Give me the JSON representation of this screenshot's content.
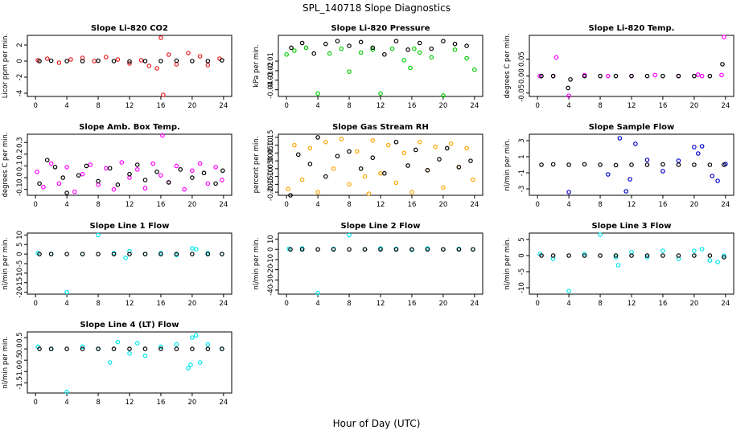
{
  "title": "SPL_140718  Slope Diagnostics",
  "xlabel": "Hour of Day (UTC)",
  "chart_data": [
    {
      "type": "scatter",
      "title": "Slope Li-820 CO2",
      "ylabel": "Licor ppm per min.",
      "xlim": [
        0,
        24
      ],
      "xticks": [
        "0",
        "4",
        "8",
        "12",
        "16",
        "20",
        "24"
      ],
      "ylim": [
        -4.4,
        3.2
      ],
      "yticks": [
        "-4",
        "-2",
        "0",
        "2"
      ],
      "series": [
        {
          "color": "#e41a1c",
          "x": [
            0.3,
            1.5,
            3.0,
            4.5,
            6.0,
            7.5,
            9.0,
            10.5,
            12.0,
            13.5,
            14.5,
            15.5,
            16.0,
            16.3,
            17.0,
            18.0,
            19.5,
            21.0,
            22.0,
            23.5
          ],
          "y": [
            0.1,
            0.3,
            -0.2,
            0.2,
            0.4,
            0.0,
            0.5,
            0.2,
            -0.3,
            0.1,
            -0.6,
            -0.9,
            2.9,
            -4.2,
            0.8,
            -0.4,
            1.0,
            0.6,
            -0.5,
            0.3
          ]
        },
        {
          "color": "#000000",
          "x": [
            0.5,
            2.0,
            4.0,
            6.0,
            8.0,
            10.0,
            12.0,
            14.0,
            16.0,
            18.0,
            20.0,
            22.0,
            23.8
          ],
          "y": [
            0.0,
            0.05,
            0.0,
            0.0,
            0.05,
            0.0,
            -0.05,
            0.0,
            0.0,
            0.05,
            0.0,
            0.0,
            0.1
          ]
        }
      ]
    },
    {
      "type": "scatter",
      "title": "Slope Li-820 Pressure",
      "ylabel": "kPa per min.",
      "xlim": [
        0,
        24
      ],
      "xticks": [
        "0",
        "4",
        "8",
        "12",
        "16",
        "20",
        "24"
      ],
      "ylim": [
        -0.047,
        0.017
      ],
      "yticks": [
        "-0.04",
        "-0.03",
        "-0.02",
        "-0.01"
      ],
      "series": [
        {
          "color": "#00cc00",
          "x": [
            0.0,
            1.0,
            2.5,
            4.0,
            5.5,
            7.0,
            8.0,
            9.5,
            11.0,
            12.0,
            13.5,
            15.0,
            15.8,
            16.3,
            17.0,
            18.5,
            20.0,
            21.5,
            23.0,
            24.0
          ],
          "y": [
            -0.003,
            0.001,
            0.004,
            -0.044,
            -0.002,
            0.003,
            -0.021,
            -0.001,
            0.002,
            -0.044,
            0.003,
            -0.009,
            -0.017,
            0.003,
            -0.001,
            -0.006,
            -0.046,
            0.002,
            -0.007,
            -0.019
          ]
        },
        {
          "color": "#000000",
          "x": [
            0.6,
            2.0,
            3.5,
            5.0,
            6.5,
            8.0,
            9.5,
            11.0,
            12.5,
            14.0,
            15.5,
            17.0,
            18.5,
            20.0,
            21.5,
            23.0
          ],
          "y": [
            0.004,
            0.009,
            -0.002,
            0.008,
            0.011,
            0.006,
            0.01,
            0.004,
            -0.003,
            0.011,
            0.002,
            0.009,
            0.003,
            0.011,
            0.008,
            0.006
          ]
        }
      ]
    },
    {
      "type": "scatter",
      "title": "Slope Li-820 Temp.",
      "ylabel": "degrees C per min.",
      "xlim": [
        0,
        24
      ],
      "xticks": [
        "0",
        "4",
        "8",
        "12",
        "16",
        "20",
        "24"
      ],
      "ylim": [
        -0.06,
        0.12
      ],
      "yticks": [
        "-0.05",
        "0.00",
        "0.05"
      ],
      "series": [
        {
          "color": "#ff00ff",
          "x": [
            0.3,
            2.0,
            2.4,
            4.0,
            6.0,
            9.0,
            12.0,
            15.0,
            18.0,
            20.5,
            21.0,
            23.5,
            23.8
          ],
          "y": [
            0.0,
            0.0,
            0.055,
            -0.058,
            0.003,
            0.0,
            0.0,
            0.003,
            0.0,
            0.004,
            0.0,
            0.003,
            0.115
          ]
        },
        {
          "color": "#000000",
          "x": [
            0.5,
            2.0,
            3.9,
            4.2,
            6.0,
            8.0,
            10.0,
            12.0,
            14.0,
            16.0,
            18.0,
            20.0,
            22.0,
            23.6
          ],
          "y": [
            0.0,
            0.0,
            -0.035,
            -0.01,
            0.0,
            0.0,
            0.0,
            0.0,
            0.0,
            0.0,
            0.0,
            0.0,
            0.0,
            0.035
          ]
        }
      ]
    },
    {
      "type": "scatter",
      "title": "Slope Amb. Box Temp.",
      "ylabel": "degrees C per min.",
      "xlim": [
        0,
        24
      ],
      "xticks": [
        "0",
        "4",
        "8",
        "12",
        "16",
        "20",
        "24"
      ],
      "ylim": [
        -0.15,
        0.37
      ],
      "yticks": [
        "-0.1",
        "0.0",
        "0.1",
        "0.2",
        "0.3"
      ],
      "series": [
        {
          "color": "#ff00ff",
          "x": [
            0.2,
            1.0,
            2.0,
            3.0,
            4.0,
            5.0,
            6.0,
            7.0,
            8.0,
            9.0,
            10.0,
            11.0,
            12.0,
            13.0,
            14.0,
            15.0,
            16.0,
            16.2,
            17.0,
            18.0,
            19.0,
            20.0,
            21.0,
            22.0,
            23.0,
            23.8
          ],
          "y": [
            0.05,
            -0.08,
            0.12,
            -0.05,
            0.09,
            -0.12,
            0.03,
            0.11,
            -0.06,
            0.08,
            -0.1,
            0.13,
            0.0,
            0.07,
            -0.09,
            0.12,
            0.02,
            0.36,
            -0.04,
            0.1,
            -0.1,
            0.06,
            0.12,
            -0.05,
            0.09,
            -0.02
          ]
        },
        {
          "color": "#000000",
          "x": [
            0.5,
            1.5,
            2.5,
            3.5,
            4.0,
            5.5,
            6.5,
            8.0,
            9.5,
            10.5,
            12.0,
            13.0,
            14.0,
            15.5,
            17.0,
            18.5,
            20.0,
            21.5,
            23.0,
            23.9
          ],
          "y": [
            -0.05,
            0.15,
            0.09,
            0.0,
            -0.13,
            0.02,
            0.1,
            -0.03,
            0.08,
            -0.06,
            0.03,
            0.11,
            -0.02,
            0.05,
            -0.04,
            0.07,
            0.0,
            0.04,
            -0.05,
            0.06
          ]
        }
      ]
    },
    {
      "type": "scatter",
      "title": "Slope Gas Stream RH",
      "ylabel": "percent per min.",
      "xlim": [
        0,
        24
      ],
      "xticks": [
        "0",
        "4",
        "8",
        "12",
        "16",
        "20",
        "24"
      ],
      "ylim": [
        -0.22,
        0.17
      ],
      "yticks": [
        "-0.20",
        "-0.15",
        "-0.10",
        "-0.05",
        "0.00",
        "0.05",
        "0.10",
        "0.15"
      ],
      "series": [
        {
          "color": "#ffa500",
          "x": [
            0.2,
            1.0,
            2.0,
            3.0,
            4.0,
            5.0,
            6.0,
            7.0,
            8.0,
            9.0,
            10.0,
            10.5,
            11.0,
            12.0,
            13.0,
            14.0,
            15.0,
            16.0,
            17.0,
            18.0,
            19.0,
            20.0,
            21.0,
            22.0,
            23.0,
            23.8
          ],
          "y": [
            -0.18,
            0.1,
            -0.12,
            0.08,
            -0.2,
            0.12,
            -0.05,
            0.14,
            -0.15,
            0.06,
            -0.1,
            -0.21,
            0.13,
            -0.08,
            0.1,
            -0.14,
            0.05,
            -0.2,
            0.12,
            -0.06,
            0.09,
            -0.17,
            0.11,
            -0.04,
            0.08,
            -0.12
          ]
        },
        {
          "color": "#000000",
          "x": [
            0.5,
            1.5,
            3.0,
            4.0,
            5.0,
            6.5,
            8.0,
            9.5,
            11.0,
            12.5,
            14.0,
            15.5,
            16.5,
            18.0,
            19.5,
            20.5,
            22.0,
            23.5
          ],
          "y": [
            -0.22,
            0.04,
            -0.02,
            0.15,
            -0.1,
            0.03,
            0.06,
            -0.05,
            0.02,
            -0.08,
            0.12,
            -0.03,
            0.07,
            -0.06,
            0.01,
            0.08,
            -0.04,
            0.0
          ]
        }
      ]
    },
    {
      "type": "scatter",
      "title": "Slope Sample Flow",
      "ylabel": "nl/min per min.",
      "xlim": [
        0,
        24
      ],
      "xticks": [
        "0",
        "4",
        "8",
        "12",
        "16",
        "20",
        "24"
      ],
      "ylim": [
        -3.8,
        3.8
      ],
      "yticks": [
        "-3",
        "-1",
        "1",
        "3"
      ],
      "series": [
        {
          "color": "#0000cc",
          "x": [
            4.0,
            9.0,
            10.5,
            11.3,
            11.8,
            12.5,
            14.0,
            16.0,
            18.0,
            20.0,
            20.5,
            21.0,
            22.3,
            23.0,
            24.0
          ],
          "y": [
            -3.4,
            -1.2,
            3.3,
            -3.3,
            -1.8,
            2.6,
            0.6,
            -0.8,
            0.5,
            2.2,
            1.4,
            2.3,
            -1.4,
            -2.0,
            0.1
          ]
        },
        {
          "color": "#000000",
          "x": [
            0.5,
            2.0,
            4.0,
            6.0,
            8.0,
            10.0,
            12.0,
            14.0,
            16.0,
            18.0,
            20.0,
            22.0,
            23.8
          ],
          "y": [
            0.0,
            0.05,
            0.0,
            0.05,
            0.0,
            -0.05,
            0.0,
            0.0,
            0.05,
            0.0,
            0.0,
            0.0,
            0.0
          ]
        }
      ]
    },
    {
      "type": "scatter",
      "title": "Slope Line 1 Flow",
      "ylabel": "nl/min per min.",
      "xlim": [
        0,
        24
      ],
      "xticks": [
        "0",
        "4",
        "8",
        "12",
        "16",
        "20",
        "24"
      ],
      "ylim": [
        -21,
        11
      ],
      "yticks": [
        "-20",
        "-15",
        "-10",
        "-5",
        "0",
        "5",
        "10"
      ],
      "series": [
        {
          "color": "#00e5ee",
          "x": [
            0.3,
            2.0,
            4.0,
            6.0,
            8.0,
            10.0,
            11.5,
            12.0,
            14.0,
            16.0,
            18.0,
            20.0,
            20.5,
            22.0,
            23.8
          ],
          "y": [
            0.5,
            0.0,
            -20.0,
            0.0,
            10.0,
            0.5,
            -2.0,
            1.5,
            0.0,
            0.5,
            -0.5,
            3.0,
            2.5,
            0.5,
            0.0
          ]
        },
        {
          "color": "#000000",
          "x": [
            0.5,
            2.0,
            4.0,
            6.0,
            8.0,
            10.0,
            12.0,
            14.0,
            16.0,
            18.0,
            20.0,
            22.0,
            23.8
          ],
          "y": [
            0.0,
            0.0,
            0.0,
            0.0,
            0.0,
            0.0,
            0.0,
            0.0,
            0.0,
            0.0,
            0.0,
            0.0,
            0.0
          ]
        }
      ]
    },
    {
      "type": "scatter",
      "title": "Slope Line 2 Flow",
      "ylabel": "nl/min per min.",
      "xlim": [
        0,
        24
      ],
      "xticks": [
        "0",
        "4",
        "8",
        "12",
        "16",
        "20",
        "24"
      ],
      "ylim": [
        -44,
        16
      ],
      "yticks": [
        "-40",
        "-30",
        "-20",
        "-10",
        "0",
        "10"
      ],
      "series": [
        {
          "color": "#00e5ee",
          "x": [
            0.3,
            2.0,
            4.0,
            6.0,
            8.0,
            10.0,
            12.0,
            14.0,
            16.0,
            18.0,
            20.0,
            22.0,
            23.8
          ],
          "y": [
            0.5,
            1.0,
            -43.0,
            0.5,
            14.0,
            0.0,
            1.0,
            0.5,
            -0.5,
            1.0,
            0.0,
            0.5,
            0.0
          ]
        },
        {
          "color": "#000000",
          "x": [
            0.5,
            2.0,
            4.0,
            6.0,
            8.0,
            10.0,
            12.0,
            14.0,
            16.0,
            18.0,
            20.0,
            22.0,
            23.8
          ],
          "y": [
            0.0,
            0.0,
            0.0,
            0.0,
            0.0,
            0.0,
            0.0,
            0.0,
            0.0,
            0.0,
            0.0,
            0.0,
            0.0
          ]
        }
      ]
    },
    {
      "type": "scatter",
      "title": "Slope Line 3 Flow",
      "ylabel": "nl/min per min.",
      "xlim": [
        0,
        24
      ],
      "xticks": [
        "0",
        "4",
        "8",
        "12",
        "16",
        "20",
        "24"
      ],
      "ylim": [
        -12,
        7
      ],
      "yticks": [
        "-10",
        "-5",
        "0",
        "5"
      ],
      "series": [
        {
          "color": "#00e5ee",
          "x": [
            0.3,
            2.0,
            4.0,
            6.0,
            8.0,
            10.0,
            10.3,
            12.0,
            14.0,
            16.0,
            18.0,
            20.0,
            21.0,
            22.0,
            23.0,
            23.8
          ],
          "y": [
            0.5,
            -1.0,
            -11.0,
            0.5,
            6.5,
            -0.5,
            -3.0,
            1.0,
            -0.5,
            1.5,
            -1.0,
            1.5,
            2.0,
            -1.5,
            -2.0,
            0.0
          ]
        },
        {
          "color": "#000000",
          "x": [
            0.5,
            2.0,
            4.0,
            6.0,
            8.0,
            10.0,
            12.0,
            14.0,
            16.0,
            18.0,
            20.0,
            22.0,
            23.8
          ],
          "y": [
            0.0,
            0.0,
            0.0,
            0.0,
            0.0,
            0.0,
            0.0,
            0.0,
            0.0,
            0.0,
            0.0,
            0.0,
            -0.5
          ]
        }
      ]
    },
    {
      "type": "scatter",
      "title": "Slope Line 4 (LT) Flow",
      "ylabel": "nl/min per min.",
      "xlim": [
        0,
        24
      ],
      "xticks": [
        "0",
        "4",
        "8",
        "12",
        "16",
        "20",
        "24"
      ],
      "ylim": [
        -1.95,
        0.75
      ],
      "yticks": [
        "-1.5",
        "-1.0",
        "-0.5",
        "0.0",
        "0.5"
      ],
      "series": [
        {
          "color": "#00e5ee",
          "x": [
            0.3,
            2.0,
            4.0,
            6.0,
            8.0,
            9.5,
            10.5,
            12.0,
            13.0,
            14.0,
            16.0,
            18.0,
            19.5,
            19.8,
            20.0,
            20.5,
            21.0,
            22.0,
            23.8
          ],
          "y": [
            0.1,
            0.0,
            -1.9,
            0.1,
            0.0,
            -0.6,
            0.3,
            -0.2,
            0.25,
            -0.3,
            0.1,
            0.2,
            -0.85,
            -0.7,
            0.5,
            0.6,
            -0.6,
            0.2,
            0.0
          ]
        },
        {
          "color": "#000000",
          "x": [
            0.5,
            2.0,
            4.0,
            6.0,
            8.0,
            10.0,
            12.0,
            14.0,
            16.0,
            18.0,
            20.0,
            22.0,
            23.8
          ],
          "y": [
            0.0,
            0.0,
            0.0,
            0.0,
            0.0,
            0.0,
            0.0,
            0.0,
            0.0,
            0.0,
            0.0,
            0.0,
            0.0
          ]
        }
      ]
    }
  ]
}
